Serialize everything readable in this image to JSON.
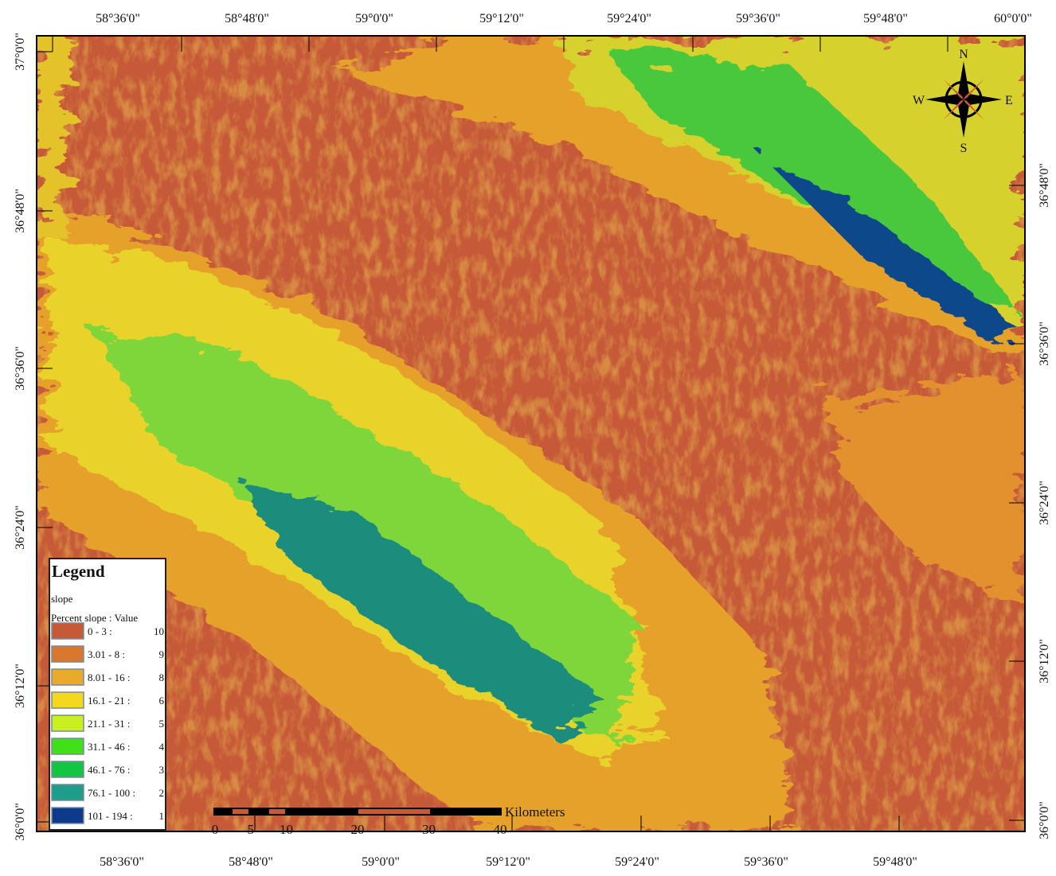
{
  "map": {
    "top_labels": [
      "58°36'0\"",
      "58°48'0\"",
      "59°0'0\"",
      "59°12'0\"",
      "59°24'0\"",
      "59°36'0\"",
      "59°48'0\"",
      "60°0'0\""
    ],
    "bottom_labels": [
      "58°36'0\"",
      "58°48'0\"",
      "59°0'0\"",
      "59°12'0\"",
      "59°24'0\"",
      "59°36'0\"",
      "59°48'0\""
    ],
    "left_labels": [
      "37°0'0\"",
      "36°48'0\"",
      "36°36'0\"",
      "36°24'0\"",
      "36°12'0\"",
      "36°0'0\""
    ],
    "right_labels": [
      "36°48'0\"",
      "36°36'0\"",
      "36°24'0\"",
      "36°12'0\"",
      "36°0'0\""
    ]
  },
  "legend": {
    "title": "Legend",
    "field": "slope",
    "subtitle": "Percent slope : Value",
    "items": [
      {
        "label": "0 - 3 :",
        "value": 10,
        "color": "#c65a38"
      },
      {
        "label": "3.01 - 8 :",
        "value": 9,
        "color": "#d9772f"
      },
      {
        "label": "8.01 - 16 :",
        "value": 8,
        "color": "#e9a92a"
      },
      {
        "label": "16.1 - 21 :",
        "value": 6,
        "color": "#f3d81e"
      },
      {
        "label": "21.1 - 31 :",
        "value": 5,
        "color": "#c9ef1f"
      },
      {
        "label": "31.1 - 46 :",
        "value": 4,
        "color": "#3fe019"
      },
      {
        "label": "46.1 - 76 :",
        "value": 3,
        "color": "#12c642"
      },
      {
        "label": "76.1 - 100 :",
        "value": 2,
        "color": "#1f9d8b"
      },
      {
        "label": "101 - 194 :",
        "value": 1,
        "color": "#0d3a8a"
      }
    ]
  },
  "scale_bar": {
    "unit": "Kilometers",
    "labels": [
      0,
      5,
      10,
      20,
      30,
      40
    ]
  },
  "compass": {
    "n": "N",
    "s": "S",
    "e": "E",
    "w": "W"
  }
}
